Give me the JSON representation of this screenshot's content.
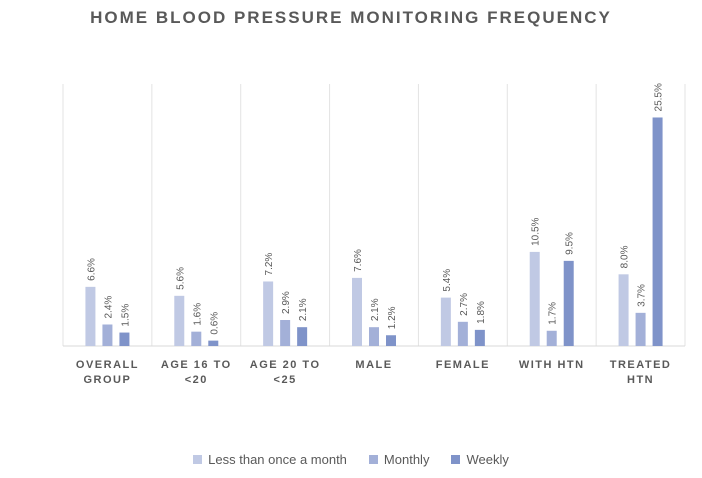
{
  "chart_data": {
    "type": "bar",
    "title": "HOME BLOOD PRESSURE MONITORING FREQUENCY",
    "categories": [
      [
        "OVERALL",
        "GROUP"
      ],
      [
        "AGE 16 TO",
        "<20"
      ],
      [
        "AGE 20 TO",
        "<25"
      ],
      [
        "MALE"
      ],
      [
        "FEMALE"
      ],
      [
        "WITH HTN"
      ],
      [
        "TREATED",
        "HTN"
      ]
    ],
    "series": [
      {
        "name": "Less than once a month",
        "color": "#c0c9e4",
        "values": [
          6.6,
          5.6,
          7.2,
          7.6,
          5.4,
          10.5,
          8.0
        ],
        "labels": [
          "6.6%",
          "5.6%",
          "7.2%",
          "7.6%",
          "5.4%",
          "10.5%",
          "8.0%"
        ]
      },
      {
        "name": "Monthly",
        "color": "#a3b0d8",
        "values": [
          2.4,
          1.6,
          2.9,
          2.1,
          2.7,
          1.7,
          3.7
        ],
        "labels": [
          "2.4%",
          "1.6%",
          "2.9%",
          "2.1%",
          "2.7%",
          "1.7%",
          "3.7%"
        ]
      },
      {
        "name": "Weekly",
        "color": "#7f93c9",
        "values": [
          1.5,
          0.6,
          2.1,
          1.2,
          1.8,
          9.5,
          25.5
        ],
        "labels": [
          "1.5%",
          "0.6%",
          "2.1%",
          "1.2%",
          "1.8%",
          "9.5%",
          "25.5%"
        ]
      }
    ],
    "ylim": [
      0,
      26
    ],
    "grid": false,
    "legend": "bottom"
  }
}
